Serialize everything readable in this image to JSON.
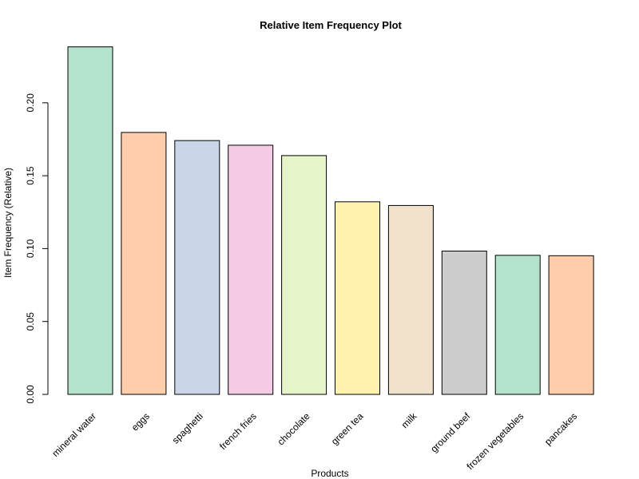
{
  "chart_data": {
    "type": "bar",
    "title": "Relative Item Frequency Plot",
    "xlabel": "Products",
    "ylabel": "Item Frequency (Relative)",
    "ylim": [
      0,
      0.25
    ],
    "yticks": [
      "0.00",
      "0.05",
      "0.10",
      "0.15",
      "0.20"
    ],
    "categories": [
      "mineral water",
      "eggs",
      "spaghetti",
      "french fries",
      "chocolate",
      "green tea",
      "milk",
      "ground beef",
      "frozen vegetables",
      "pancakes"
    ],
    "values": [
      0.2384,
      0.1797,
      0.1741,
      0.1709,
      0.1638,
      0.1321,
      0.1296,
      0.0983,
      0.0954,
      0.0951
    ],
    "colors": [
      "#B3E2CD",
      "#FDCDAC",
      "#CBD5E8",
      "#F4CAE4",
      "#E6F5C9",
      "#FFF2AE",
      "#F1E2CC",
      "#CCCCCC",
      "#B3E2CD",
      "#FDCDAC"
    ],
    "bar_stroke": "#000000",
    "grid": false,
    "legend": "none"
  }
}
